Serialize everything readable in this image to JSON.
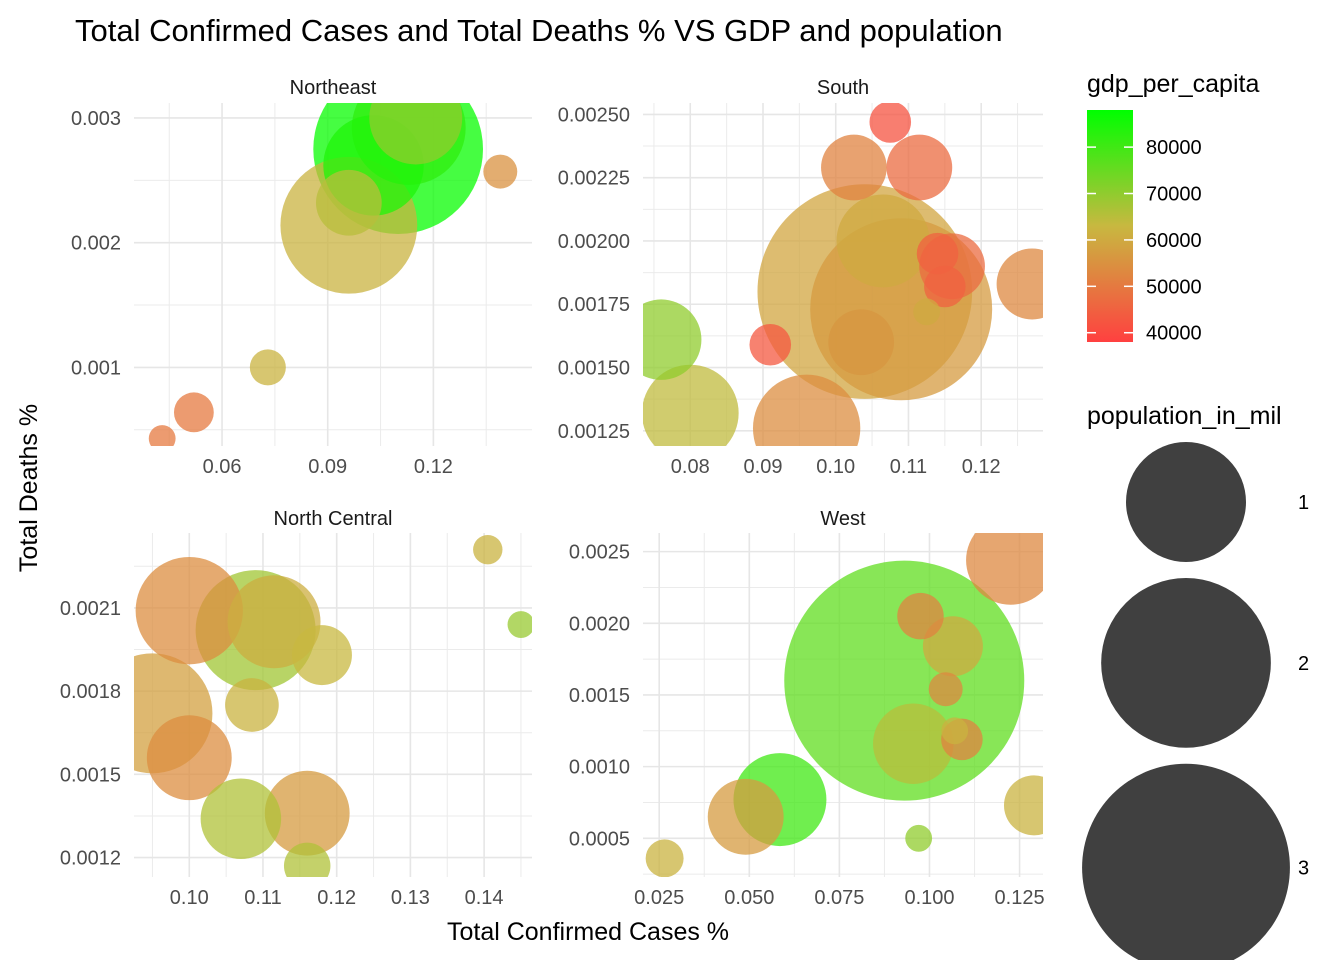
{
  "chart_data": {
    "type": "scatter",
    "title": "Total Confirmed Cases and Total Deaths % VS GDP and population",
    "xlabel": "Total Confirmed Cases %",
    "ylabel": "Total Deaths %",
    "grid": true,
    "legend_placement": "right",
    "color_legend": {
      "title": "gdp_per_capita",
      "low_color": "#ff4040",
      "mid_color": "#c8b840",
      "high_color": "#00ff00",
      "range": [
        38000,
        88000
      ],
      "ticks": [
        80000,
        70000,
        60000,
        50000,
        40000
      ]
    },
    "size_legend": {
      "title": "population_in_mil",
      "ticks": [
        1,
        2,
        3
      ],
      "color": "#404040"
    },
    "panels": [
      {
        "name": "Northeast",
        "xlim": [
          0.035,
          0.148
        ],
        "ylim": [
          0.00037,
          0.00312
        ],
        "xticks": [
          {
            "v": 0.06,
            "label": "0.06"
          },
          {
            "v": 0.09,
            "label": "0.09"
          },
          {
            "v": 0.12,
            "label": "0.12"
          }
        ],
        "yticks": [
          {
            "v": 0.001,
            "label": "0.001"
          },
          {
            "v": 0.002,
            "label": "0.002"
          },
          {
            "v": 0.003,
            "label": "0.003"
          }
        ],
        "points": [
          {
            "x": 0.115,
            "y": 0.003,
            "gdp": 70000,
            "pop": 0.6
          },
          {
            "x": 0.113,
            "y": 0.00292,
            "gdp": 82000,
            "pop": 0.9
          },
          {
            "x": 0.11,
            "y": 0.00275,
            "gdp": 87000,
            "pop": 2.0
          },
          {
            "x": 0.103,
            "y": 0.00262,
            "gdp": 84000,
            "pop": 0.7
          },
          {
            "x": 0.096,
            "y": 0.00232,
            "gdp": 65000,
            "pop": 0.3
          },
          {
            "x": 0.096,
            "y": 0.00214,
            "gdp": 62000,
            "pop": 1.3
          },
          {
            "x": 0.139,
            "y": 0.00257,
            "gdp": 55000,
            "pop": 0.08
          },
          {
            "x": 0.073,
            "y": 0.001,
            "gdp": 62000,
            "pop": 0.09
          },
          {
            "x": 0.052,
            "y": 0.00064,
            "gdp": 50000,
            "pop": 0.11
          },
          {
            "x": 0.043,
            "y": 0.00043,
            "gdp": 50000,
            "pop": 0.05
          }
        ]
      },
      {
        "name": "South",
        "xlim": [
          0.0735,
          0.1285
        ],
        "ylim": [
          0.00119,
          0.002545
        ],
        "xticks": [
          {
            "v": 0.08,
            "label": "0.08"
          },
          {
            "v": 0.09,
            "label": "0.09"
          },
          {
            "v": 0.1,
            "label": "0.10"
          },
          {
            "v": 0.11,
            "label": "0.11"
          },
          {
            "v": 0.12,
            "label": "0.12"
          }
        ],
        "yticks": [
          {
            "v": 0.00125,
            "label": "0.00125"
          },
          {
            "v": 0.0015,
            "label": "0.00150"
          },
          {
            "v": 0.00175,
            "label": "0.00175"
          },
          {
            "v": 0.002,
            "label": "0.00200"
          },
          {
            "v": 0.00225,
            "label": "0.00225"
          },
          {
            "v": 0.0025,
            "label": "0.00250"
          }
        ],
        "points": [
          {
            "x": 0.1075,
            "y": 0.00247,
            "gdp": 42000,
            "pop": 0.12
          },
          {
            "x": 0.1025,
            "y": 0.00229,
            "gdp": 52000,
            "pop": 0.3
          },
          {
            "x": 0.1115,
            "y": 0.00229,
            "gdp": 47000,
            "pop": 0.3
          },
          {
            "x": 0.1065,
            "y": 0.002,
            "gdp": 60000,
            "pop": 0.6
          },
          {
            "x": 0.114,
            "y": 0.00195,
            "gdp": 45000,
            "pop": 0.12
          },
          {
            "x": 0.116,
            "y": 0.0019,
            "gdp": 47000,
            "pop": 0.3
          },
          {
            "x": 0.115,
            "y": 0.00182,
            "gdp": 45000,
            "pop": 0.12
          },
          {
            "x": 0.127,
            "y": 0.00183,
            "gdp": 53000,
            "pop": 0.35
          },
          {
            "x": 0.104,
            "y": 0.0018,
            "gdp": 59000,
            "pop": 3.2
          },
          {
            "x": 0.109,
            "y": 0.00173,
            "gdp": 57000,
            "pop": 2.3
          },
          {
            "x": 0.1125,
            "y": 0.00172,
            "gdp": 60000,
            "pop": 0.05
          },
          {
            "x": 0.1035,
            "y": 0.0016,
            "gdp": 56000,
            "pop": 0.3
          },
          {
            "x": 0.091,
            "y": 0.00159,
            "gdp": 43000,
            "pop": 0.12
          },
          {
            "x": 0.076,
            "y": 0.00161,
            "gdp": 70000,
            "pop": 0.45
          },
          {
            "x": 0.08,
            "y": 0.00132,
            "gdp": 64000,
            "pop": 0.65
          },
          {
            "x": 0.096,
            "y": 0.00126,
            "gdp": 54000,
            "pop": 0.8
          }
        ]
      },
      {
        "name": "North Central",
        "xlim": [
          0.0925,
          0.1465
        ],
        "ylim": [
          0.00113,
          0.00237
        ],
        "xticks": [
          {
            "v": 0.1,
            "label": "0.10"
          },
          {
            "v": 0.11,
            "label": "0.11"
          },
          {
            "v": 0.12,
            "label": "0.12"
          },
          {
            "v": 0.13,
            "label": "0.13"
          },
          {
            "v": 0.14,
            "label": "0.14"
          }
        ],
        "yticks": [
          {
            "v": 0.0012,
            "label": "0.0012"
          },
          {
            "v": 0.0015,
            "label": "0.0015"
          },
          {
            "v": 0.0018,
            "label": "0.0018"
          },
          {
            "v": 0.0021,
            "label": "0.0021"
          }
        ],
        "points": [
          {
            "x": 0.1405,
            "y": 0.00231,
            "gdp": 62000,
            "pop": 0.06
          },
          {
            "x": 0.145,
            "y": 0.00204,
            "gdp": 69000,
            "pop": 0.05
          },
          {
            "x": 0.1,
            "y": 0.00209,
            "gdp": 54000,
            "pop": 0.8
          },
          {
            "x": 0.109,
            "y": 0.00202,
            "gdp": 68000,
            "pop": 1.0
          },
          {
            "x": 0.1115,
            "y": 0.00205,
            "gdp": 61000,
            "pop": 0.6
          },
          {
            "x": 0.118,
            "y": 0.00193,
            "gdp": 63000,
            "pop": 0.25
          },
          {
            "x": 0.095,
            "y": 0.00172,
            "gdp": 58000,
            "pop": 1.0
          },
          {
            "x": 0.1085,
            "y": 0.00175,
            "gdp": 62000,
            "pop": 0.2
          },
          {
            "x": 0.1,
            "y": 0.00156,
            "gdp": 54000,
            "pop": 0.5
          },
          {
            "x": 0.107,
            "y": 0.00134,
            "gdp": 66000,
            "pop": 0.45
          },
          {
            "x": 0.116,
            "y": 0.00136,
            "gdp": 57000,
            "pop": 0.5
          },
          {
            "x": 0.116,
            "y": 0.00117,
            "gdp": 66000,
            "pop": 0.15
          }
        ]
      },
      {
        "name": "West",
        "xlim": [
          0.0205,
          0.1315
        ],
        "ylim": [
          0.00023,
          0.00263
        ],
        "xticks": [
          {
            "v": 0.025,
            "label": "0.025"
          },
          {
            "v": 0.05,
            "label": "0.050"
          },
          {
            "v": 0.075,
            "label": "0.075"
          },
          {
            "v": 0.1,
            "label": "0.100"
          },
          {
            "v": 0.125,
            "label": "0.125"
          }
        ],
        "yticks": [
          {
            "v": 0.0005,
            "label": "0.0005"
          },
          {
            "v": 0.001,
            "label": "0.0010"
          },
          {
            "v": 0.0015,
            "label": "0.0015"
          },
          {
            "v": 0.002,
            "label": "0.0020"
          },
          {
            "v": 0.0025,
            "label": "0.0025"
          }
        ],
        "points": [
          {
            "x": 0.1225,
            "y": 0.00244,
            "gdp": 53000,
            "pop": 0.55
          },
          {
            "x": 0.0975,
            "y": 0.00205,
            "gdp": 52000,
            "pop": 0.15
          },
          {
            "x": 0.1065,
            "y": 0.00184,
            "gdp": 60000,
            "pop": 0.25
          },
          {
            "x": 0.1045,
            "y": 0.00154,
            "gdp": 53000,
            "pop": 0.08
          },
          {
            "x": 0.093,
            "y": 0.0016,
            "gdp": 76000,
            "pop": 4.0
          },
          {
            "x": 0.0955,
            "y": 0.00116,
            "gdp": 65000,
            "pop": 0.45
          },
          {
            "x": 0.107,
            "y": 0.00125,
            "gdp": 62000,
            "pop": 0.05
          },
          {
            "x": 0.109,
            "y": 0.00119,
            "gdp": 52000,
            "pop": 0.12
          },
          {
            "x": 0.0585,
            "y": 0.00077,
            "gdp": 80000,
            "pop": 0.6
          },
          {
            "x": 0.049,
            "y": 0.00065,
            "gdp": 57000,
            "pop": 0.4
          },
          {
            "x": 0.129,
            "y": 0.00073,
            "gdp": 62000,
            "pop": 0.25
          },
          {
            "x": 0.097,
            "y": 0.0005,
            "gdp": 70000,
            "pop": 0.05
          },
          {
            "x": 0.0265,
            "y": 0.00036,
            "gdp": 62000,
            "pop": 0.1
          }
        ]
      }
    ]
  }
}
